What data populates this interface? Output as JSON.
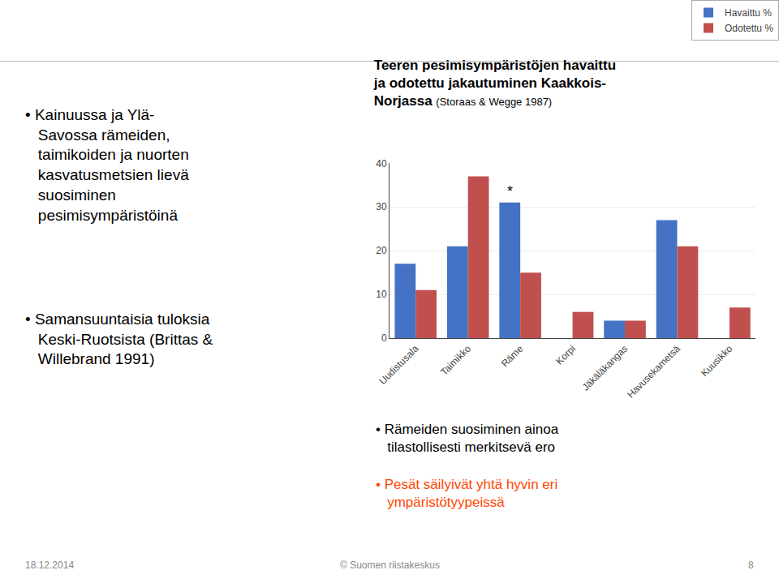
{
  "chart_data": {
    "type": "bar",
    "title": "Teeren pesimisympäristöjen havaittu\nja odotettu jakautuminen Kaakkois-\nNorjassa",
    "subtitle": "(Storaas & Wegge 1987)",
    "categories": [
      "Uudistusala",
      "Taimikko",
      "Räme",
      "Korpi",
      "Jäkäläkangas",
      "Havusekametsä",
      "Kuusikko"
    ],
    "series": [
      {
        "name": "Havaittu %",
        "color": "#4472C4",
        "values": [
          17,
          21,
          31,
          0,
          4,
          27,
          0
        ]
      },
      {
        "name": "Odotettu %",
        "color": "#C0504D",
        "values": [
          11,
          37,
          15,
          6,
          4,
          21,
          7
        ]
      }
    ],
    "ylim": [
      0,
      40
    ],
    "yticks": [
      0,
      10,
      20,
      30,
      40
    ],
    "grid": true,
    "legend": "upper right",
    "annotations": [
      {
        "text": "*",
        "category": "Räme",
        "series": "Havaittu %"
      },
      {
        "text": "• Kainuussa ja Ylä-\nSavossa rämeiden,\ntaimikoiden ja nuorten\nkasvatusmetsien lievä\nsuosiminen\npesimisympäristöinä"
      },
      {
        "text": "• Samansuuntaisia tuloksia\nKeski-Ruotsista (Brittas &\nWillebrand 1991)"
      },
      {
        "text": "• Rämeiden suosiminen ainoa\ntilastollisesti merkitsevä ero"
      },
      {
        "text": "• Pesät säilyivät yhtä hyvin eri\nympäristötyypeissä",
        "color": "#FF4500"
      },
      {
        "text": "18.12.2014"
      },
      {
        "text": "© Suomen riistakeskus"
      },
      {
        "text": "8"
      }
    ]
  }
}
